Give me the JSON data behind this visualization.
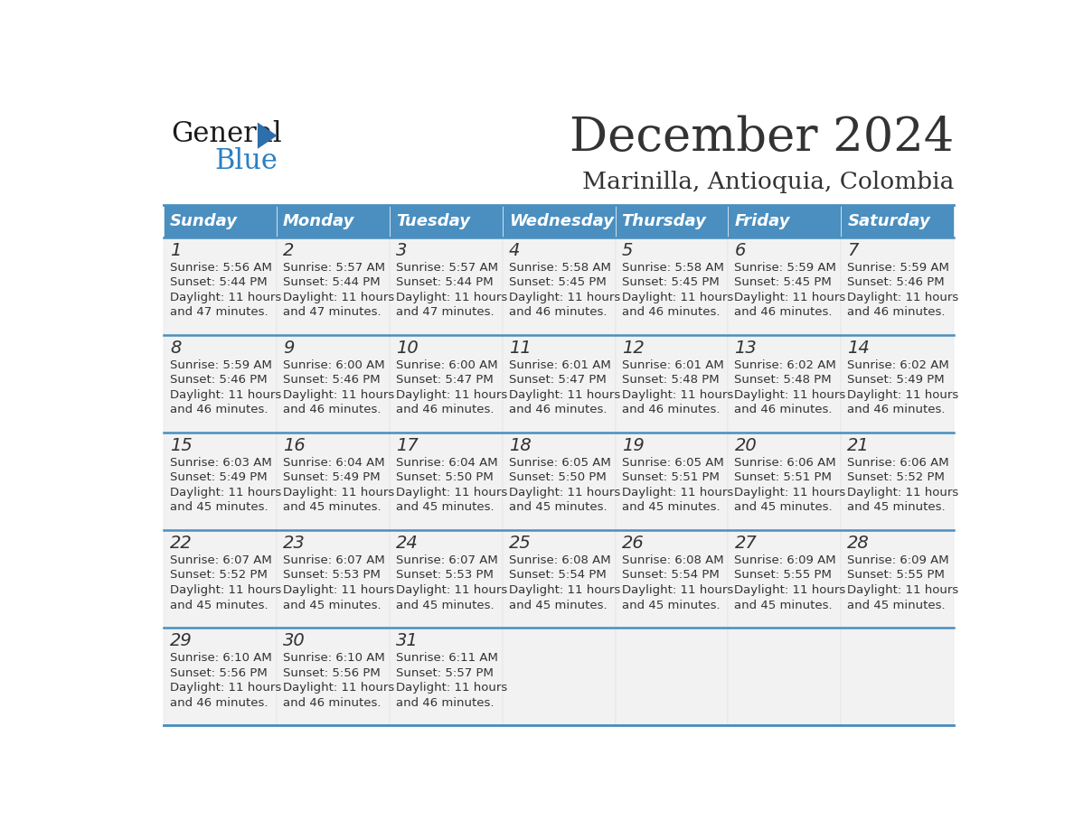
{
  "title": "December 2024",
  "subtitle": "Marinilla, Antioquia, Colombia",
  "days_of_week": [
    "Sunday",
    "Monday",
    "Tuesday",
    "Wednesday",
    "Thursday",
    "Friday",
    "Saturday"
  ],
  "header_bg": "#4A8FC0",
  "header_text": "#FFFFFF",
  "cell_bg": "#F2F2F2",
  "border_color": "#4A8FC0",
  "text_color": "#333333",
  "logo_color1": "#1A1A1A",
  "logo_color2": "#2980C4",
  "logo_tri_color": "#2C6FAC",
  "calendar_data": [
    [
      {
        "day": "1",
        "sunrise": "5:56 AM",
        "sunset": "5:44 PM",
        "daylight_h": "11",
        "daylight_m": "47"
      },
      {
        "day": "2",
        "sunrise": "5:57 AM",
        "sunset": "5:44 PM",
        "daylight_h": "11",
        "daylight_m": "47"
      },
      {
        "day": "3",
        "sunrise": "5:57 AM",
        "sunset": "5:44 PM",
        "daylight_h": "11",
        "daylight_m": "47"
      },
      {
        "day": "4",
        "sunrise": "5:58 AM",
        "sunset": "5:45 PM",
        "daylight_h": "11",
        "daylight_m": "46"
      },
      {
        "day": "5",
        "sunrise": "5:58 AM",
        "sunset": "5:45 PM",
        "daylight_h": "11",
        "daylight_m": "46"
      },
      {
        "day": "6",
        "sunrise": "5:59 AM",
        "sunset": "5:45 PM",
        "daylight_h": "11",
        "daylight_m": "46"
      },
      {
        "day": "7",
        "sunrise": "5:59 AM",
        "sunset": "5:46 PM",
        "daylight_h": "11",
        "daylight_m": "46"
      }
    ],
    [
      {
        "day": "8",
        "sunrise": "5:59 AM",
        "sunset": "5:46 PM",
        "daylight_h": "11",
        "daylight_m": "46"
      },
      {
        "day": "9",
        "sunrise": "6:00 AM",
        "sunset": "5:46 PM",
        "daylight_h": "11",
        "daylight_m": "46"
      },
      {
        "day": "10",
        "sunrise": "6:00 AM",
        "sunset": "5:47 PM",
        "daylight_h": "11",
        "daylight_m": "46"
      },
      {
        "day": "11",
        "sunrise": "6:01 AM",
        "sunset": "5:47 PM",
        "daylight_h": "11",
        "daylight_m": "46"
      },
      {
        "day": "12",
        "sunrise": "6:01 AM",
        "sunset": "5:48 PM",
        "daylight_h": "11",
        "daylight_m": "46"
      },
      {
        "day": "13",
        "sunrise": "6:02 AM",
        "sunset": "5:48 PM",
        "daylight_h": "11",
        "daylight_m": "46"
      },
      {
        "day": "14",
        "sunrise": "6:02 AM",
        "sunset": "5:49 PM",
        "daylight_h": "11",
        "daylight_m": "46"
      }
    ],
    [
      {
        "day": "15",
        "sunrise": "6:03 AM",
        "sunset": "5:49 PM",
        "daylight_h": "11",
        "daylight_m": "45"
      },
      {
        "day": "16",
        "sunrise": "6:04 AM",
        "sunset": "5:49 PM",
        "daylight_h": "11",
        "daylight_m": "45"
      },
      {
        "day": "17",
        "sunrise": "6:04 AM",
        "sunset": "5:50 PM",
        "daylight_h": "11",
        "daylight_m": "45"
      },
      {
        "day": "18",
        "sunrise": "6:05 AM",
        "sunset": "5:50 PM",
        "daylight_h": "11",
        "daylight_m": "45"
      },
      {
        "day": "19",
        "sunrise": "6:05 AM",
        "sunset": "5:51 PM",
        "daylight_h": "11",
        "daylight_m": "45"
      },
      {
        "day": "20",
        "sunrise": "6:06 AM",
        "sunset": "5:51 PM",
        "daylight_h": "11",
        "daylight_m": "45"
      },
      {
        "day": "21",
        "sunrise": "6:06 AM",
        "sunset": "5:52 PM",
        "daylight_h": "11",
        "daylight_m": "45"
      }
    ],
    [
      {
        "day": "22",
        "sunrise": "6:07 AM",
        "sunset": "5:52 PM",
        "daylight_h": "11",
        "daylight_m": "45"
      },
      {
        "day": "23",
        "sunrise": "6:07 AM",
        "sunset": "5:53 PM",
        "daylight_h": "11",
        "daylight_m": "45"
      },
      {
        "day": "24",
        "sunrise": "6:07 AM",
        "sunset": "5:53 PM",
        "daylight_h": "11",
        "daylight_m": "45"
      },
      {
        "day": "25",
        "sunrise": "6:08 AM",
        "sunset": "5:54 PM",
        "daylight_h": "11",
        "daylight_m": "45"
      },
      {
        "day": "26",
        "sunrise": "6:08 AM",
        "sunset": "5:54 PM",
        "daylight_h": "11",
        "daylight_m": "45"
      },
      {
        "day": "27",
        "sunrise": "6:09 AM",
        "sunset": "5:55 PM",
        "daylight_h": "11",
        "daylight_m": "45"
      },
      {
        "day": "28",
        "sunrise": "6:09 AM",
        "sunset": "5:55 PM",
        "daylight_h": "11",
        "daylight_m": "45"
      }
    ],
    [
      {
        "day": "29",
        "sunrise": "6:10 AM",
        "sunset": "5:56 PM",
        "daylight_h": "11",
        "daylight_m": "46"
      },
      {
        "day": "30",
        "sunrise": "6:10 AM",
        "sunset": "5:56 PM",
        "daylight_h": "11",
        "daylight_m": "46"
      },
      {
        "day": "31",
        "sunrise": "6:11 AM",
        "sunset": "5:57 PM",
        "daylight_h": "11",
        "daylight_m": "46"
      },
      null,
      null,
      null,
      null
    ]
  ]
}
